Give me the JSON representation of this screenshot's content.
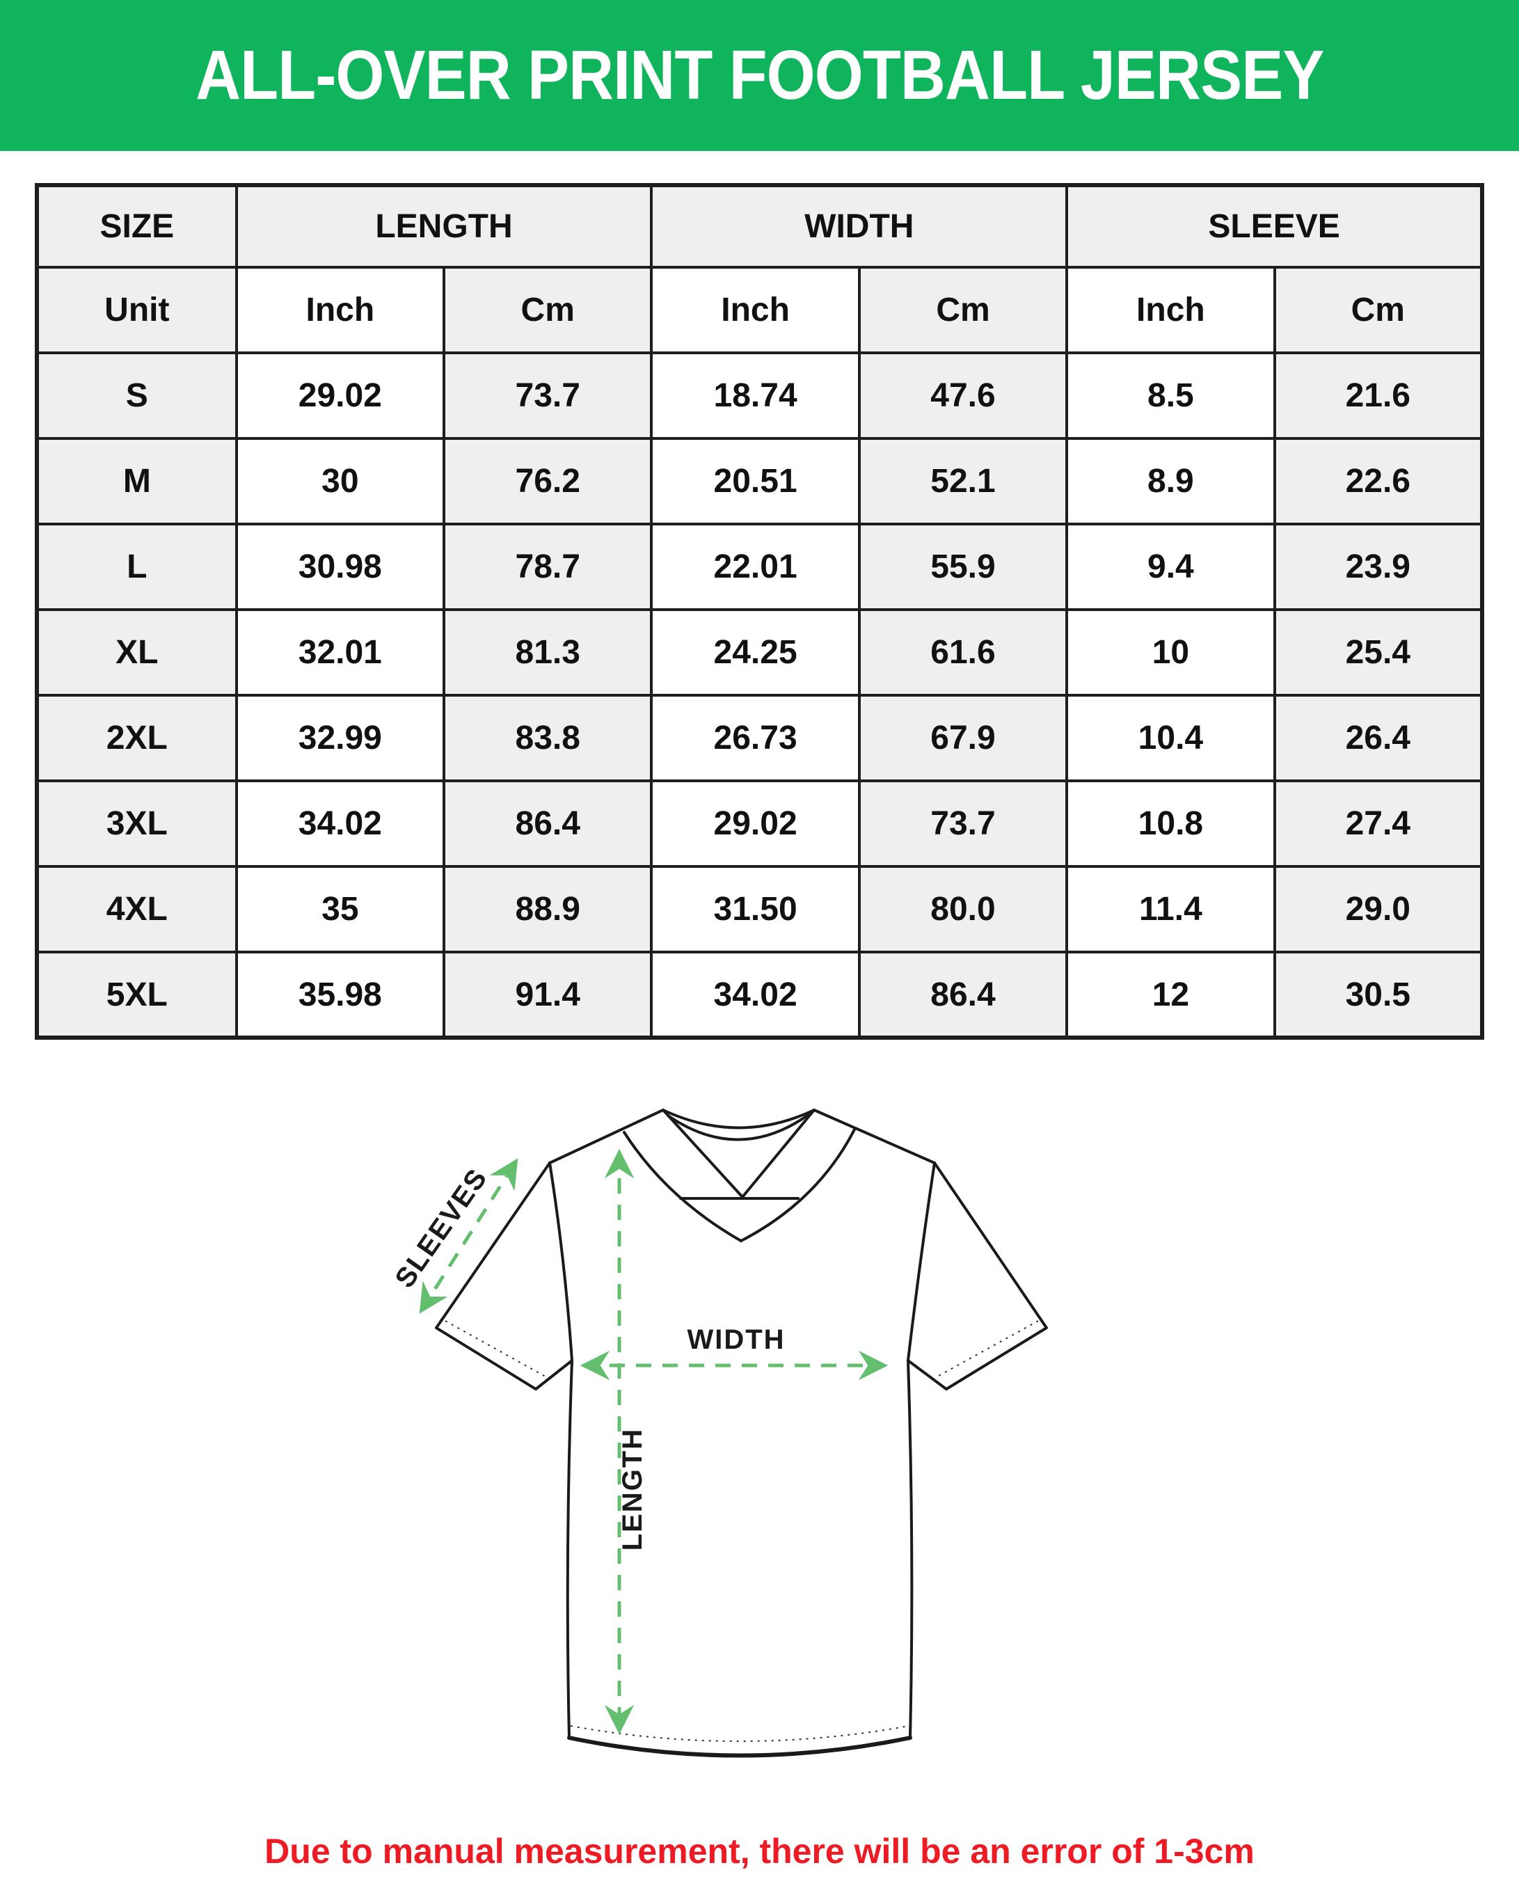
{
  "title": "ALL-OVER PRINT FOOTBALL JERSEY",
  "note": "Due to manual measurement, there will be an error of 1-3cm",
  "colors": {
    "banner-green": "#10B45C",
    "cell-gray": "#F0EFEF",
    "border-dark": "#1E1E1E",
    "note-red": "#ED1C24",
    "diagram-green": "#63BE6E",
    "line-black": "#1A1A1A"
  },
  "table": {
    "groups": [
      {
        "label": "SIZE",
        "span": 1
      },
      {
        "label": "LENGTH",
        "span": 2
      },
      {
        "label": "WIDTH",
        "span": 2
      },
      {
        "label": "SLEEVE",
        "span": 2
      }
    ],
    "sub_headers": [
      "Unit",
      "Inch",
      "Cm",
      "Inch",
      "Cm",
      "Inch",
      "Cm"
    ],
    "rows": [
      {
        "size": "S",
        "values": [
          "29.02",
          "73.7",
          "18.74",
          "47.6",
          "8.5",
          "21.6"
        ]
      },
      {
        "size": "M",
        "values": [
          "30",
          "76.2",
          "20.51",
          "52.1",
          "8.9",
          "22.6"
        ]
      },
      {
        "size": "L",
        "values": [
          "30.98",
          "78.7",
          "22.01",
          "55.9",
          "9.4",
          "23.9"
        ]
      },
      {
        "size": "XL",
        "values": [
          "32.01",
          "81.3",
          "24.25",
          "61.6",
          "10",
          "25.4"
        ]
      },
      {
        "size": "2XL",
        "values": [
          "32.99",
          "83.8",
          "26.73",
          "67.9",
          "10.4",
          "26.4"
        ]
      },
      {
        "size": "3XL",
        "values": [
          "34.02",
          "86.4",
          "29.02",
          "73.7",
          "10.8",
          "27.4"
        ]
      },
      {
        "size": "4XL",
        "values": [
          "35",
          "88.9",
          "31.50",
          "80.0",
          "11.4",
          "29.0"
        ]
      },
      {
        "size": "5XL",
        "values": [
          "35.98",
          "91.4",
          "34.02",
          "86.4",
          "12",
          "30.5"
        ]
      }
    ]
  },
  "diagram": {
    "labels": {
      "sleeves": "SLEEVES",
      "width": "WIDTH",
      "length": "LENGTH"
    }
  }
}
